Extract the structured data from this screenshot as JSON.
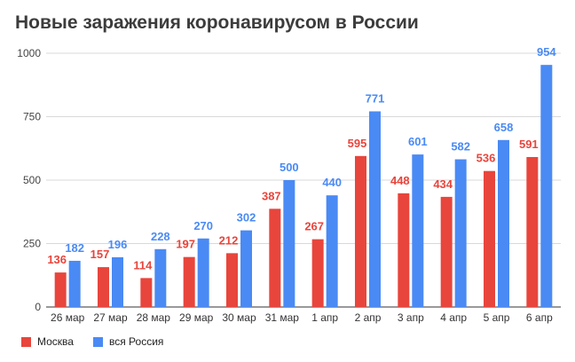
{
  "chart_data": {
    "type": "bar",
    "title": "Новые заражения коронавирусом в России",
    "categories": [
      "26 мар",
      "27 мар",
      "28 мар",
      "29 мар",
      "30 мар",
      "31 мар",
      "1 апр",
      "2 апр",
      "3 апр",
      "4 апр",
      "5 апр",
      "6 апр"
    ],
    "series": [
      {
        "name": "Москва",
        "color": "#e8453c",
        "values": [
          136,
          157,
          114,
          197,
          212,
          387,
          267,
          595,
          448,
          434,
          536,
          591
        ]
      },
      {
        "name": "вся Россия",
        "color": "#4a8af4",
        "values": [
          182,
          196,
          228,
          270,
          302,
          500,
          440,
          771,
          601,
          582,
          658,
          954
        ]
      }
    ],
    "ylim": [
      0,
      1000
    ],
    "yticks": [
      0,
      250,
      500,
      750,
      1000
    ],
    "grid": true,
    "legend_position": "bottom-left",
    "xlabel": "",
    "ylabel": ""
  }
}
